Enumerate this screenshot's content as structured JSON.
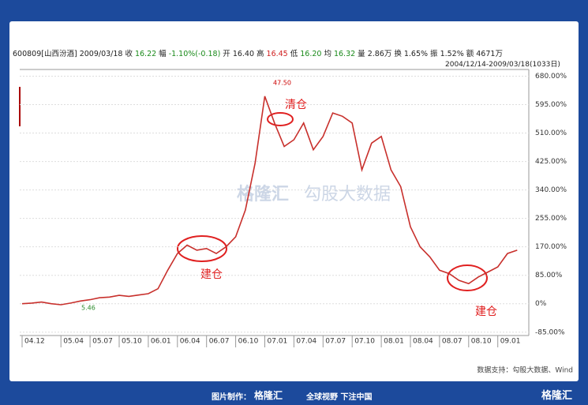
{
  "header": {
    "items": [
      "600809[山西汾酒]",
      "2009/03/18",
      "收",
      "16.22",
      "幅",
      "-1.10%(-0.18)",
      "开",
      "16.40",
      "高",
      "16.45",
      "低",
      "16.20",
      "均",
      "16.32",
      "量",
      "2.86万",
      "换",
      "1.65%",
      "振",
      "1.52%",
      "额",
      "4671万"
    ],
    "range": "2004/12/14-2009/03/18(1033日)"
  },
  "chart_data": {
    "type": "line",
    "categories": [
      "04.12",
      null,
      null,
      null,
      "05.04",
      null,
      null,
      "05.07",
      null,
      null,
      "05.10",
      null,
      null,
      "06.01",
      null,
      null,
      "06.04",
      null,
      null,
      "06.07",
      null,
      null,
      "06.10",
      null,
      null,
      "07.01",
      null,
      null,
      "07.04",
      null,
      null,
      "07.07",
      null,
      null,
      "07.10",
      null,
      null,
      "08.01",
      null,
      null,
      "08.04",
      null,
      null,
      "08.07",
      null,
      null,
      "08.10",
      null,
      null,
      "09.01",
      null,
      null
    ],
    "series": [
      {
        "name": "600809",
        "color": "#c8302c",
        "values": [
          0,
          2,
          5,
          0,
          -3,
          2,
          8,
          12,
          18,
          20,
          25,
          22,
          26,
          30,
          45,
          100,
          150,
          175,
          160,
          165,
          150,
          170,
          200,
          280,
          420,
          620,
          540,
          470,
          490,
          540,
          460,
          500,
          570,
          560,
          540,
          400,
          480,
          500,
          400,
          350,
          230,
          170,
          140,
          100,
          90,
          70,
          60,
          80,
          95,
          110,
          150,
          160
        ]
      }
    ],
    "ylim": [
      -95,
      700
    ],
    "yticks": [
      {
        "value": -85,
        "label": "-85.00%"
      },
      {
        "value": 0,
        "label": "0%"
      },
      {
        "value": 85,
        "label": "85.00%"
      },
      {
        "value": 170,
        "label": "170.00%"
      },
      {
        "value": 255,
        "label": "255.00%"
      },
      {
        "value": 340,
        "label": "340.00%"
      },
      {
        "value": 425,
        "label": "425.00%"
      },
      {
        "value": 510,
        "label": "510.00%"
      },
      {
        "value": 595,
        "label": "595.00%"
      },
      {
        "value": 680,
        "label": "680.00%"
      }
    ],
    "grid": true,
    "annotations": [
      "47.50",
      "5.46",
      "清仓",
      "建仓",
      "建仓"
    ],
    "watermark": [
      "格隆汇",
      "勾股大数据"
    ],
    "source": "数据支持：勾股大数据、Wind"
  },
  "footer": {
    "made_by": "图片制作：",
    "brand": "格隆汇",
    "slogan": "全球视野 下注中国"
  }
}
